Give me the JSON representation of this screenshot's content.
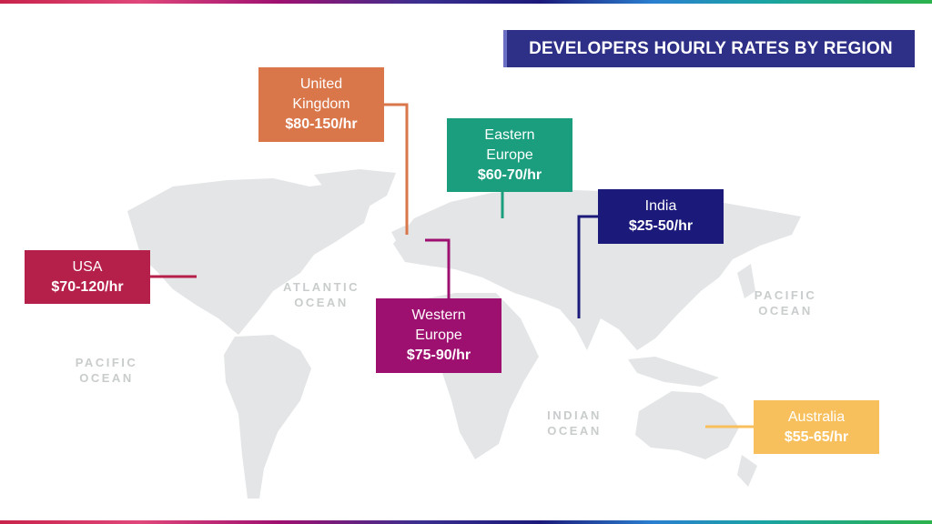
{
  "title": "DEVELOPERS HOURLY RATES BY REGION",
  "regions": [
    {
      "name": "United Kingdom",
      "rate": "$80-150/hr"
    },
    {
      "name": "Eastern Europe",
      "rate": "$60-70/hr"
    },
    {
      "name": "India",
      "rate": "$25-50/hr"
    },
    {
      "name": "USA",
      "rate": "$70-120/hr"
    },
    {
      "name": "Western Europe",
      "rate": "$75-90/hr"
    },
    {
      "name": "Australia",
      "rate": "$55-65/hr"
    }
  ],
  "oceans": [
    "ATLANTIC OCEAN",
    "PACIFIC OCEAN",
    "PACIFIC OCEAN",
    "INDIAN OCEAN"
  ]
}
